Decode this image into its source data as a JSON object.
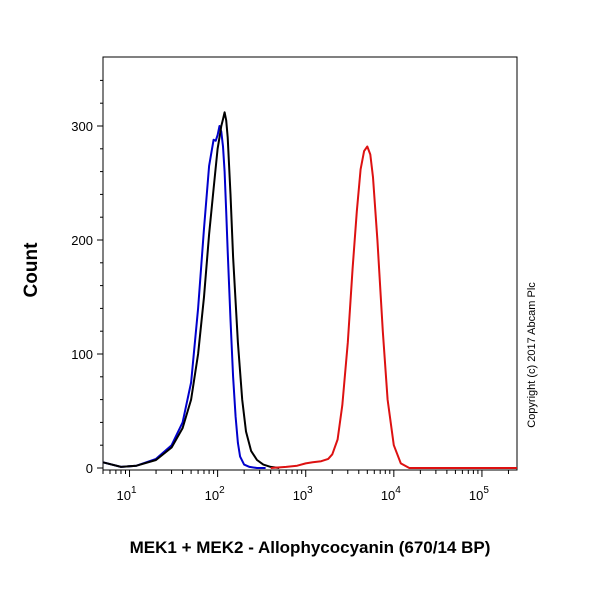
{
  "chart_data": {
    "type": "line",
    "title": "",
    "xlabel": "MEK1 + MEK2 - Allophycocyanin (670/14 BP)",
    "ylabel": "Count",
    "x_scale": "log",
    "xlim": [
      5,
      250000
    ],
    "ylim": [
      0,
      360
    ],
    "grid": false,
    "x_ticks": [
      {
        "value": 10,
        "base": "10",
        "exp": "1"
      },
      {
        "value": 100,
        "base": "10",
        "exp": "2"
      },
      {
        "value": 1000,
        "base": "10",
        "exp": "3"
      },
      {
        "value": 10000,
        "base": "10",
        "exp": "4"
      },
      {
        "value": 100000,
        "base": "10",
        "exp": "5"
      }
    ],
    "y_ticks": [
      0,
      100,
      200,
      300
    ],
    "series": [
      {
        "color": "#0000cc",
        "x": [
          5,
          8,
          12,
          20,
          30,
          40,
          50,
          60,
          70,
          80,
          90,
          95,
          100,
          105,
          110,
          115,
          120,
          125,
          130,
          140,
          150,
          160,
          170,
          180,
          200,
          230,
          280,
          350
        ],
        "y": [
          5,
          1,
          2,
          8,
          20,
          40,
          75,
          140,
          210,
          265,
          288,
          287,
          292,
          300,
          295,
          282,
          260,
          225,
          190,
          130,
          80,
          45,
          22,
          10,
          3,
          1,
          0,
          0
        ]
      },
      {
        "color": "#000000",
        "x": [
          5,
          8,
          12,
          20,
          30,
          40,
          50,
          60,
          70,
          80,
          90,
          100,
          105,
          110,
          115,
          120,
          125,
          130,
          140,
          150,
          170,
          190,
          210,
          240,
          280,
          330,
          400,
          500
        ],
        "y": [
          5,
          1,
          2,
          7,
          18,
          35,
          60,
          100,
          150,
          205,
          245,
          280,
          290,
          300,
          306,
          312,
          305,
          290,
          240,
          185,
          110,
          60,
          32,
          15,
          7,
          3,
          1,
          0
        ]
      },
      {
        "color": "#dd1111",
        "x": [
          400,
          600,
          800,
          1000,
          1200,
          1500,
          1800,
          2000,
          2300,
          2600,
          3000,
          3400,
          3800,
          4200,
          4600,
          5000,
          5400,
          5800,
          6500,
          7500,
          8500,
          10000,
          12000,
          15000,
          100000,
          250000
        ],
        "y": [
          0,
          1,
          2,
          4,
          5,
          6,
          8,
          12,
          25,
          55,
          110,
          175,
          225,
          262,
          278,
          282,
          275,
          255,
          200,
          120,
          60,
          20,
          4,
          0,
          0,
          0
        ]
      }
    ],
    "annotations": [
      "Copyright (c) 2017 Abcam Plc"
    ]
  }
}
